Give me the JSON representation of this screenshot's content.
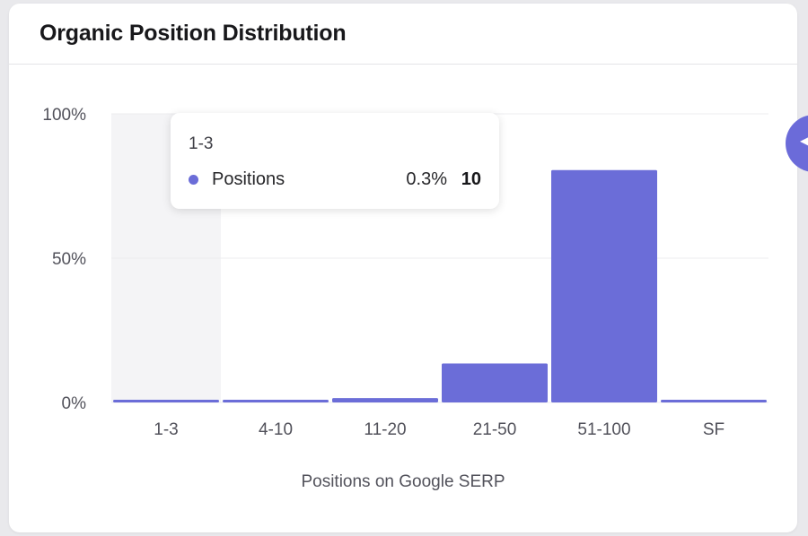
{
  "card": {
    "title": "Organic Position Distribution"
  },
  "chart_data": {
    "type": "bar",
    "categories": [
      "1-3",
      "4-10",
      "11-20",
      "21-50",
      "51-100",
      "SF"
    ],
    "series": [
      {
        "name": "Positions",
        "values": [
          0.3,
          0.5,
          1.5,
          13.5,
          80.5,
          0.8
        ],
        "color": "#6b6dd8"
      }
    ],
    "xlabel": "Positions on Google SERP",
    "ylabel": "",
    "ylim": [
      0,
      100
    ],
    "yticks": [
      "0%",
      "50%",
      "100%"
    ],
    "grid": true,
    "highlighted_category": "1-3"
  },
  "tooltip": {
    "title": "1-3",
    "series_label": "Positions",
    "percent": "0.3%",
    "value": "10",
    "color": "#6b6dd8"
  },
  "side_button": {
    "icon": "chevron-left-icon",
    "color": "#6b6bd9"
  }
}
